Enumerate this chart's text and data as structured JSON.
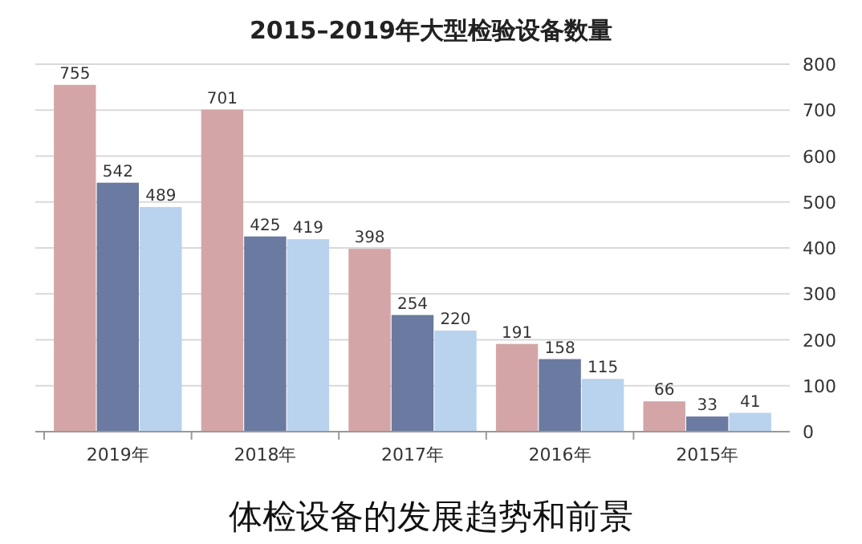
{
  "chart_data": {
    "type": "bar",
    "title": "2015–2019年大型检验设备数量",
    "annotations": [
      "体检设备的发展趋势和前景"
    ],
    "categories": [
      "2019年",
      "2018年",
      "2017年",
      "2016年",
      "2015年"
    ],
    "series": [
      {
        "color": "#d4a5a7",
        "values": [
          755,
          701,
          398,
          191,
          66
        ]
      },
      {
        "color": "#6a7aa0",
        "values": [
          542,
          425,
          254,
          158,
          33
        ]
      },
      {
        "color": "#b9d2ee",
        "values": [
          489,
          419,
          220,
          115,
          41
        ]
      }
    ],
    "ylim": [
      0,
      800
    ],
    "yticks": [
      0,
      100,
      200,
      300,
      400,
      500,
      600,
      700,
      800
    ],
    "grid": "y",
    "data_labels": true
  }
}
